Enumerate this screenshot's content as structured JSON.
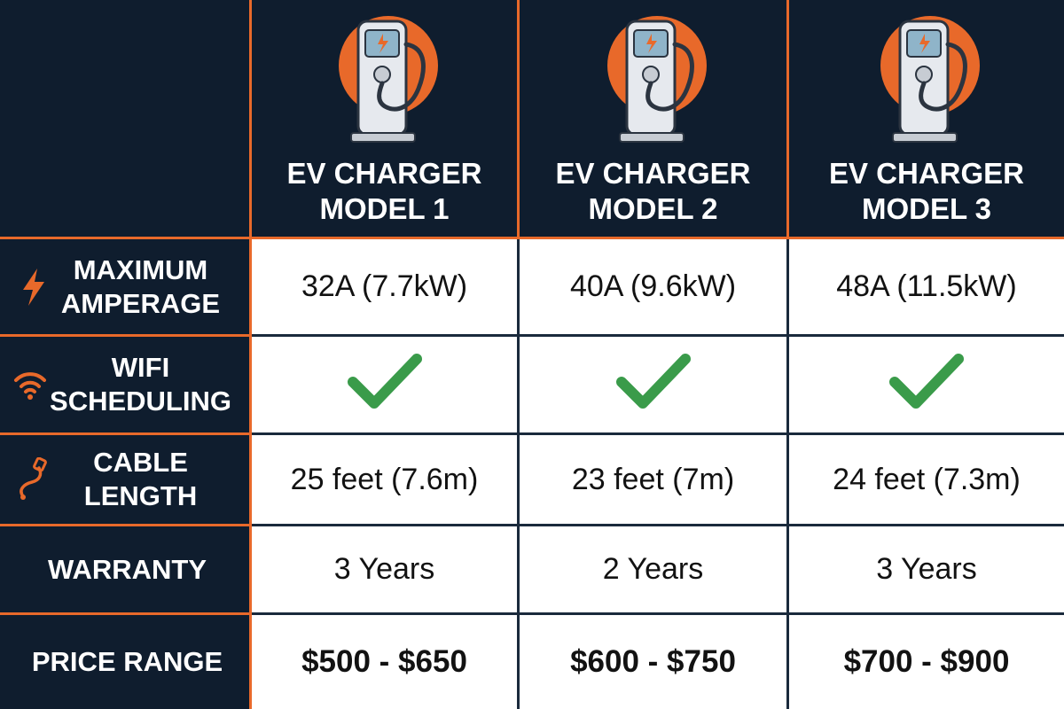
{
  "colors": {
    "background": "#0f1d2e",
    "accent": "#e8692a",
    "check": "#3a9b4a",
    "cell_bg": "#ffffff"
  },
  "models": [
    {
      "title": "EV CHARGER MODEL 1",
      "icon": "ev-charger-icon"
    },
    {
      "title": "EV CHARGER MODEL 2",
      "icon": "ev-charger-icon"
    },
    {
      "title": "EV CHARGER MODEL 3",
      "icon": "ev-charger-icon"
    }
  ],
  "rows": [
    {
      "label": "MAXIMUM AMPERAGE",
      "icon": "lightning-icon",
      "values": [
        "32A (7.7kW)",
        "40A (9.6kW)",
        "48A (11.5kW)"
      ]
    },
    {
      "label": "WIFI SCHEDULING",
      "icon": "wifi-icon",
      "values": [
        "check",
        "check",
        "check"
      ]
    },
    {
      "label": "CABLE LENGTH",
      "icon": "cable-icon",
      "values": [
        "25 feet (7.6m)",
        "23 feet (7m)",
        "24 feet (7.3m)"
      ]
    },
    {
      "label": "WARRANTY",
      "icon": "",
      "values": [
        "3 Years",
        "2 Years",
        "3 Years"
      ]
    },
    {
      "label": "PRICE RANGE",
      "icon": "",
      "values": [
        "$500 - $650",
        "$600 - $750",
        "$700 - $900"
      ]
    }
  ]
}
